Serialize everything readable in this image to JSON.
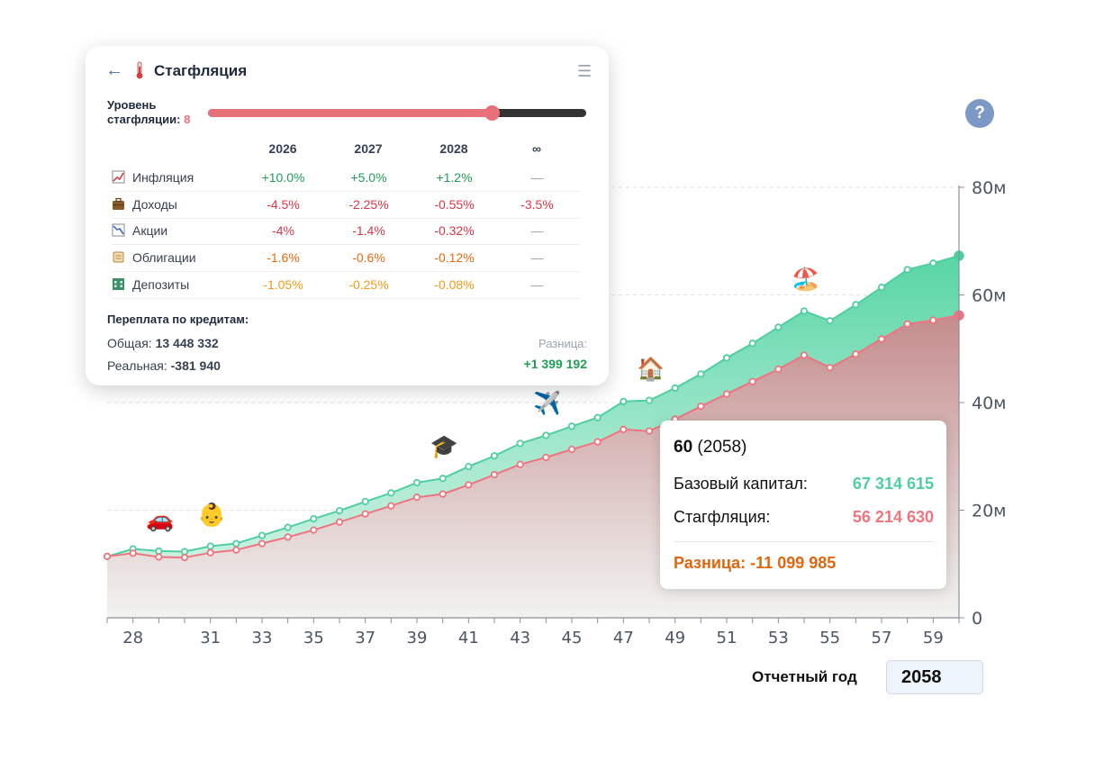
{
  "chart_data": {
    "type": "area",
    "x": [
      27,
      28,
      29,
      30,
      31,
      32,
      33,
      34,
      35,
      36,
      37,
      38,
      39,
      40,
      41,
      42,
      43,
      44,
      45,
      46,
      47,
      48,
      49,
      50,
      51,
      52,
      53,
      54,
      55,
      56,
      57,
      58,
      59,
      60
    ],
    "x_tick_labels": [
      "28",
      "31",
      "33",
      "35",
      "37",
      "39",
      "41",
      "43",
      "45",
      "47",
      "49",
      "51",
      "53",
      "55",
      "57",
      "59"
    ],
    "y_tick_labels": [
      "0",
      "20м",
      "40м",
      "60м",
      "80м"
    ],
    "ylim": [
      0,
      80000000
    ],
    "grid": "horizontal dashed",
    "series": [
      {
        "name": "Базовый капитал",
        "color": "#4fcf9f",
        "values": [
          11.4,
          12.8,
          12.4,
          12.3,
          13.3,
          13.8,
          15.3,
          16.8,
          18.4,
          19.9,
          21.6,
          23.2,
          25.1,
          25.9,
          28.1,
          30.1,
          32.4,
          33.9,
          35.6,
          37.2,
          40.2,
          40.4,
          42.7,
          45.3,
          48.3,
          51.0,
          54.0,
          57.0,
          55.2,
          58.2,
          61.4,
          64.7,
          65.9,
          67.3
        ]
      },
      {
        "name": "Стагфляция",
        "color": "#ef7480",
        "values": [
          11.4,
          12.0,
          11.3,
          11.2,
          12.1,
          12.6,
          13.8,
          15.0,
          16.3,
          17.8,
          19.3,
          20.8,
          22.4,
          23.0,
          24.7,
          26.6,
          28.5,
          29.8,
          31.3,
          32.7,
          35.0,
          34.7,
          36.9,
          39.3,
          41.6,
          43.9,
          46.2,
          48.8,
          46.5,
          49.0,
          51.8,
          54.6,
          55.3,
          56.2
        ]
      }
    ],
    "annotations": [
      {
        "x": 29,
        "icon": "car-icon",
        "glyph": "🚗"
      },
      {
        "x": 31,
        "icon": "baby-icon",
        "glyph": "👶"
      },
      {
        "x": 40,
        "icon": "graduation-cap-icon",
        "glyph": "🎓"
      },
      {
        "x": 44,
        "icon": "airplane-icon",
        "glyph": "✈️"
      },
      {
        "x": 48,
        "icon": "house-icon",
        "glyph": "🏠"
      },
      {
        "x": 54,
        "icon": "beach-icon",
        "glyph": "🏖️"
      }
    ]
  },
  "panel": {
    "back": "←",
    "title": "Стагфляция",
    "menu": "☰",
    "level_label_1": "Уровень",
    "level_label_2": "стагфляции:",
    "level_value": "8",
    "slider_fraction": 0.75,
    "columns": [
      "2026",
      "2027",
      "2028",
      "∞"
    ],
    "rows": [
      {
        "name": "Инфляция",
        "icon": "chart-up-icon",
        "values": [
          "+10.0%",
          "+5.0%",
          "+1.2%",
          "—"
        ],
        "colors": [
          "green",
          "green",
          "green",
          "gray"
        ]
      },
      {
        "name": "Доходы",
        "icon": "briefcase-icon",
        "values": [
          "-4.5%",
          "-2.25%",
          "-0.55%",
          "-3.5%"
        ],
        "colors": [
          "red",
          "red",
          "red",
          "red"
        ]
      },
      {
        "name": "Акции",
        "icon": "chart-down-icon",
        "values": [
          "-4%",
          "-1.4%",
          "-0.32%",
          "—"
        ],
        "colors": [
          "red",
          "red",
          "red",
          "gray"
        ]
      },
      {
        "name": "Облигации",
        "icon": "scroll-icon",
        "values": [
          "-1.6%",
          "-0.6%",
          "-0.12%",
          "—"
        ],
        "colors": [
          "orange",
          "orange",
          "orange",
          "gray"
        ]
      },
      {
        "name": "Депозиты",
        "icon": "bank-icon",
        "values": [
          "-1.05%",
          "-0.25%",
          "-0.08%",
          "—"
        ],
        "colors": [
          "amber",
          "amber",
          "amber",
          "gray"
        ]
      }
    ],
    "overpay_title": "Переплата по кредитам:",
    "total_label": "Общая:",
    "total_value": "13 448 332",
    "real_label": "Реальная:",
    "real_value": "-381 940",
    "diff_label": "Разница:",
    "diff_value": "+1 399 192"
  },
  "tooltip": {
    "age": "60",
    "year": "(2058)",
    "base_label": "Базовый капитал:",
    "base_value": "67 314 615",
    "stag_label": "Стагфляция:",
    "stag_value": "56 214 630",
    "diff_text": "Разница: -11 099 985"
  },
  "help": "?",
  "report_year": {
    "label": "Отчетный год",
    "value": "2058"
  }
}
